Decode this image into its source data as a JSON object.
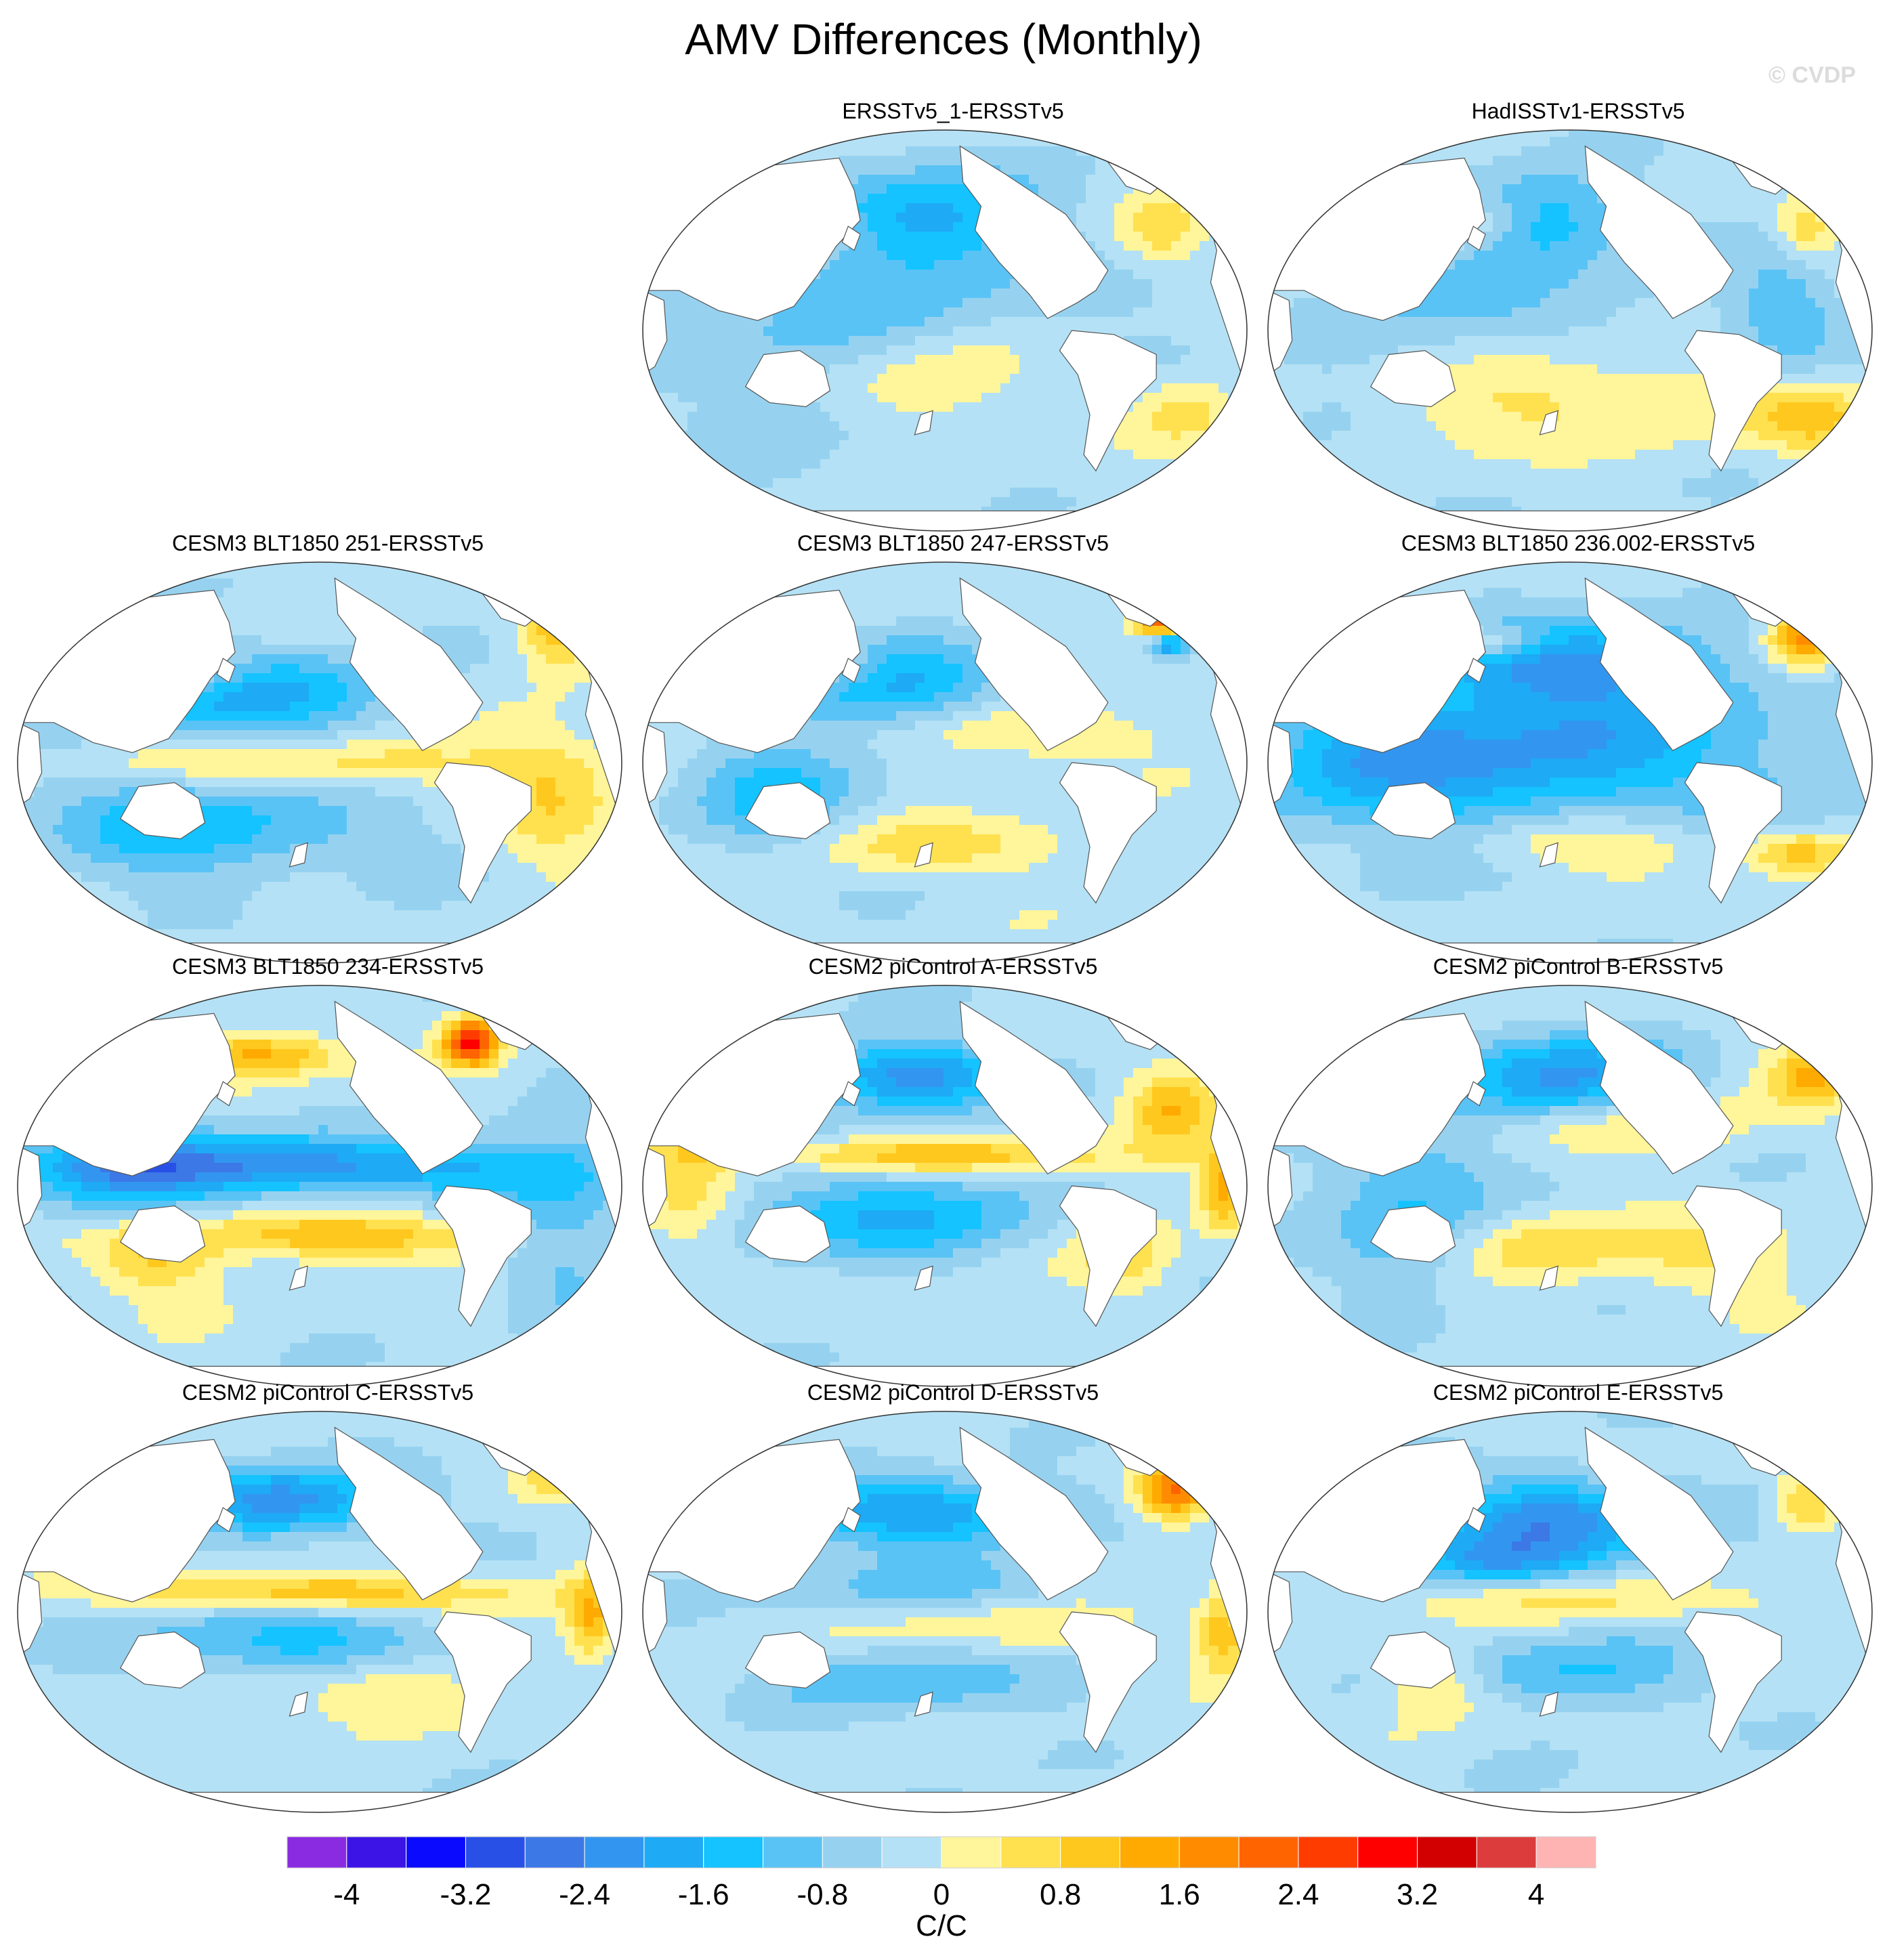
{
  "title": "AMV Differences (Monthly)",
  "watermark": "© CVDP",
  "chart_data": {
    "type": "heatmap",
    "title": "AMV Differences (Monthly)",
    "projection": "global map (Robinson-like)",
    "colorbar": {
      "units": "C/C",
      "levels": [
        -4.4,
        -4.0,
        -3.6,
        -3.2,
        -2.8,
        -2.4,
        -2.0,
        -1.6,
        -1.2,
        -0.8,
        -0.4,
        0.0,
        0.4,
        0.8,
        1.2,
        1.6,
        2.0,
        2.4,
        2.8,
        3.2,
        3.6,
        4.0,
        4.4
      ],
      "tick_labels": [
        "-4",
        "-3.2",
        "-2.4",
        "-1.6",
        "-0.8",
        "0",
        "0.8",
        "1.6",
        "2.4",
        "3.2",
        "4"
      ],
      "tick_values": [
        -4,
        -3.2,
        -2.4,
        -1.6,
        -0.8,
        0,
        0.8,
        1.6,
        2.4,
        3.2,
        4
      ],
      "colors": [
        "#8a2be2",
        "#3c14e6",
        "#0a0aff",
        "#2850e6",
        "#3c78e6",
        "#3296f0",
        "#1eaaf5",
        "#14c3ff",
        "#5ac3f5",
        "#96d2f0",
        "#b4e1f5",
        "#fff59b",
        "#ffe150",
        "#ffc81e",
        "#ffaa00",
        "#ff8c00",
        "#ff6400",
        "#ff3c00",
        "#ff0000",
        "#d20000",
        "#dc3c3c",
        "#ffb4b4"
      ]
    },
    "panels": [
      {
        "title": "ERSSTv5_1-ERSSTv5",
        "row": 0,
        "col": 1
      },
      {
        "title": "HadISSTv1-ERSSTv5",
        "row": 0,
        "col": 2
      },
      {
        "title": "CESM3 BLT1850 251-ERSSTv5",
        "row": 1,
        "col": 0
      },
      {
        "title": "CESM3 BLT1850 247-ERSSTv5",
        "row": 1,
        "col": 1
      },
      {
        "title": "CESM3 BLT1850 236.002-ERSSTv5",
        "row": 1,
        "col": 2
      },
      {
        "title": "CESM3 BLT1850 234-ERSSTv5",
        "row": 2,
        "col": 0
      },
      {
        "title": "CESM2 piControl A-ERSSTv5",
        "row": 2,
        "col": 1
      },
      {
        "title": "CESM2 piControl B-ERSSTv5",
        "row": 2,
        "col": 2
      },
      {
        "title": "CESM2 piControl C-ERSSTv5",
        "row": 3,
        "col": 0
      },
      {
        "title": "CESM2 piControl D-ERSSTv5",
        "row": 3,
        "col": 1
      },
      {
        "title": "CESM2 piControl E-ERSSTv5",
        "row": 3,
        "col": 2
      }
    ]
  }
}
